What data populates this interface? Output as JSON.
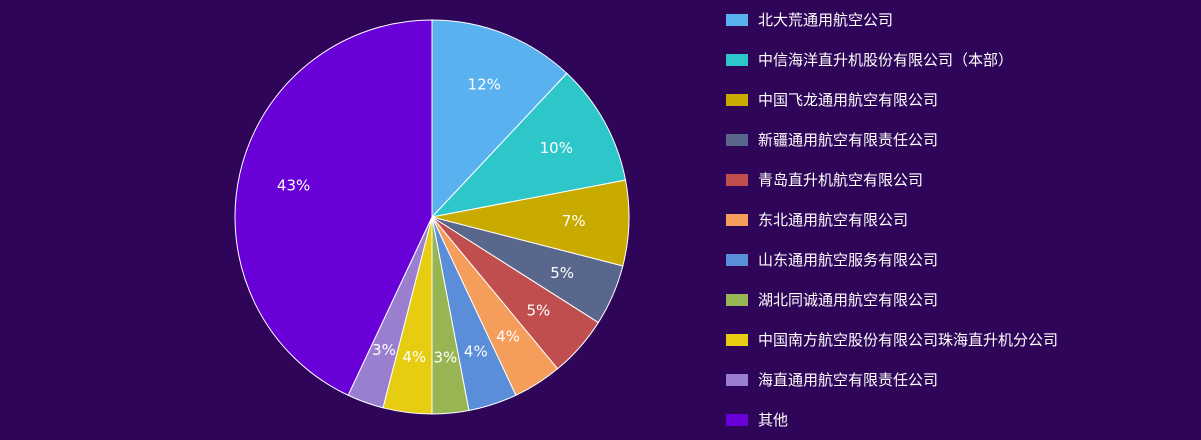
{
  "chart_data": {
    "type": "pie",
    "title": "",
    "series": [
      {
        "values": [
          12,
          10,
          7,
          5,
          5,
          4,
          4,
          3,
          4,
          3,
          43
        ]
      }
    ],
    "categories": [
      "北大荒通用航空公司",
      "中信海洋直升机股份有限公司（本部）",
      "中国飞龙通用航空有限公司",
      "新疆通用航空有限责任公司",
      "青岛直升机航空有限公司",
      "东北通用航空有限公司",
      "山东通用航空服务有限公司",
      "湖北同诚通用航空有限公司",
      "中国南方航空股份有限公司珠海直升机分公司",
      "海直通用航空有限责任公司",
      "其他"
    ],
    "labels": [
      "12%",
      "10%",
      "7%",
      "5%",
      "5%",
      "4%",
      "4%",
      "3%",
      "4%",
      "3%",
      "43%"
    ],
    "colors": [
      "#5ab1ef",
      "#2ec7c9",
      "#c9ab00",
      "#59678c",
      "#c14e4f",
      "#f59e5b",
      "#5b8ed8",
      "#97b552",
      "#e6cd12",
      "#9a7fd1",
      "#6a00d8"
    ],
    "legend": "right"
  }
}
